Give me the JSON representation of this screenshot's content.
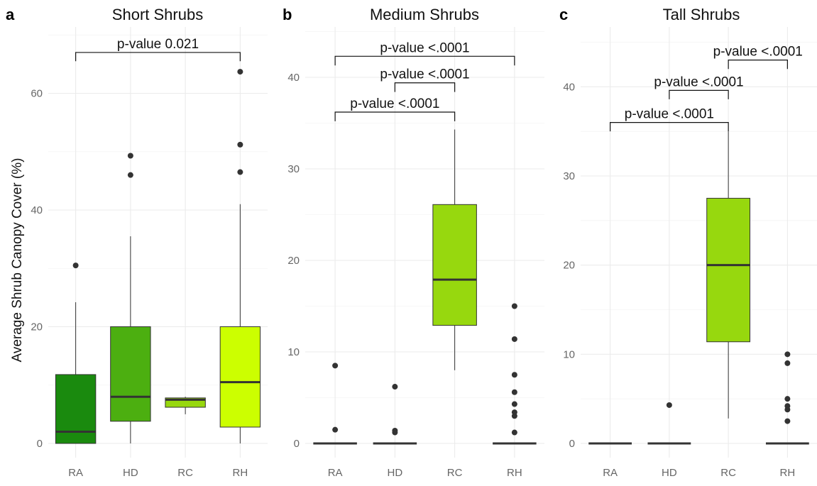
{
  "chart_data": [
    {
      "type": "box",
      "panel_label": "a",
      "title": "Short Shrubs",
      "ylabel": "Average Shrub Canopy Cover (%)",
      "ylim": [
        0,
        70
      ],
      "yticks": [
        0,
        20,
        40,
        60
      ],
      "grid": true,
      "categories": [
        "RA",
        "HD",
        "RC",
        "RH"
      ],
      "boxes": [
        {
          "category": "RA",
          "q1": 0,
          "median": 2,
          "q3": 11.8,
          "whisker_low": 0,
          "whisker_high": 24.2,
          "outliers": [
            30.5
          ],
          "color": "#1a8a0e"
        },
        {
          "category": "HD",
          "q1": 3.8,
          "median": 8,
          "q3": 20,
          "whisker_low": 0,
          "whisker_high": 35.5,
          "outliers": [
            46,
            49.3
          ],
          "color": "#4caf10"
        },
        {
          "category": "RC",
          "q1": 6.2,
          "median": 7.5,
          "q3": 7.8,
          "whisker_low": 5,
          "whisker_high": 8,
          "outliers": [],
          "color": "#97d80e"
        },
        {
          "category": "RH",
          "q1": 2.8,
          "median": 10.5,
          "q3": 20,
          "whisker_low": 0,
          "whisker_high": 41,
          "outliers": [
            46.5,
            51.2,
            63.7
          ],
          "color": "#ccff00"
        }
      ],
      "brackets": [
        {
          "from": "RA",
          "to": "RH",
          "label": "p-value 0.021",
          "y": 67,
          "drop_to": 65.5
        }
      ]
    },
    {
      "type": "box",
      "panel_label": "b",
      "title": "Medium Shrubs",
      "ylabel": "",
      "ylim": [
        -1.8,
        45
      ],
      "yticks": [
        0,
        10,
        20,
        30,
        40
      ],
      "grid": true,
      "categories": [
        "RA",
        "HD",
        "RC",
        "RH"
      ],
      "boxes": [
        {
          "category": "RA",
          "q1": 0,
          "median": 0,
          "q3": 0,
          "whisker_low": 0,
          "whisker_high": 0,
          "outliers": [
            1.5,
            8.5
          ],
          "color": "#1a8a0e"
        },
        {
          "category": "HD",
          "q1": 0,
          "median": 0,
          "q3": 0,
          "whisker_low": 0,
          "whisker_high": 0,
          "outliers": [
            1.2,
            1.4,
            6.2
          ],
          "color": "#4caf10"
        },
        {
          "category": "RC",
          "q1": 12.9,
          "median": 17.9,
          "q3": 26.1,
          "whisker_low": 8,
          "whisker_high": 34.3,
          "outliers": [],
          "color": "#97d80e"
        },
        {
          "category": "RH",
          "q1": 0,
          "median": 0,
          "q3": 0,
          "whisker_low": 0,
          "whisker_high": 0,
          "outliers": [
            1.2,
            3,
            3.4,
            4.3,
            5.6,
            7.5,
            11.4,
            15
          ],
          "color": "#ccff00"
        }
      ],
      "brackets": [
        {
          "from": "RA",
          "to": "RH",
          "label": "p-value <.0001",
          "y": 42.3,
          "drop_to": 41.3
        },
        {
          "from": "HD",
          "to": "RC",
          "label": "p-value <.0001",
          "y": 39.4,
          "drop_to": 38.4
        },
        {
          "from": "RA",
          "to": "RC",
          "label": "p-value <.0001",
          "y": 36.2,
          "drop_to": 35.2
        }
      ]
    },
    {
      "type": "box",
      "panel_label": "c",
      "title": "Tall Shrubs",
      "ylabel": "",
      "ylim": [
        -1.8,
        46
      ],
      "yticks": [
        0,
        10,
        20,
        30,
        40
      ],
      "grid": true,
      "categories": [
        "RA",
        "HD",
        "RC",
        "RH"
      ],
      "boxes": [
        {
          "category": "RA",
          "q1": 0,
          "median": 0,
          "q3": 0,
          "whisker_low": 0,
          "whisker_high": 0,
          "outliers": [],
          "color": "#1a8a0e"
        },
        {
          "category": "HD",
          "q1": 0,
          "median": 0,
          "q3": 0,
          "whisker_low": 0,
          "whisker_high": 0,
          "outliers": [
            4.3
          ],
          "color": "#4caf10"
        },
        {
          "category": "RC",
          "q1": 11.4,
          "median": 20,
          "q3": 27.5,
          "whisker_low": 2.8,
          "whisker_high": 35,
          "outliers": [],
          "color": "#97d80e"
        },
        {
          "category": "RH",
          "q1": 0,
          "median": 0,
          "q3": 0,
          "whisker_low": 0,
          "whisker_high": 0,
          "outliers": [
            2.5,
            3.8,
            4.2,
            5,
            9,
            10
          ],
          "color": "#ccff00"
        }
      ],
      "brackets": [
        {
          "from": "RC",
          "to": "RH",
          "label": "p-value <.0001",
          "y": 43,
          "drop_to": 42
        },
        {
          "from": "HD",
          "to": "RC",
          "label": "p-value <.0001",
          "y": 39.6,
          "drop_to": 38.6
        },
        {
          "from": "RA",
          "to": "RC",
          "label": "p-value <.0001",
          "y": 36,
          "drop_to": 35
        }
      ]
    }
  ]
}
